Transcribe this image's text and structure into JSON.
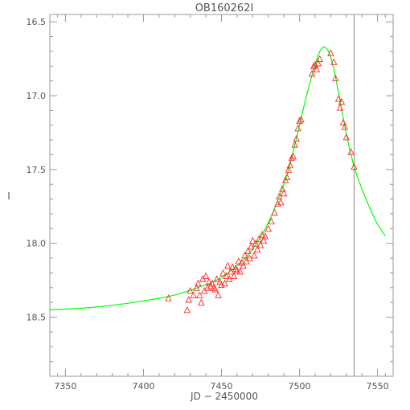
{
  "chart_data": {
    "type": "scatter",
    "title": "OB160262I",
    "xlabel": "JD − 2450000",
    "ylabel": "I",
    "xlim": [
      7340,
      7560
    ],
    "ylim": [
      18.9,
      16.45
    ],
    "y_inverted": true,
    "grid": false,
    "legend": "none",
    "x_ticks": [
      7350,
      7400,
      7450,
      7500,
      7550
    ],
    "x_tick_labels": [
      "7350",
      "7400",
      "7450",
      "7500",
      "7550"
    ],
    "y_ticks": [
      16.5,
      17.0,
      17.5,
      18.0,
      18.5
    ],
    "y_tick_labels": [
      "16.5",
      "17.0",
      "17.5",
      "18.0",
      "18.5"
    ],
    "vertical_marker": {
      "x": 7535,
      "color": "#888888"
    },
    "series": [
      {
        "kind": "model_curve",
        "color": "#00ff00",
        "x": [
          7340,
          7360,
          7380,
          7400,
          7420,
          7440,
          7450,
          7460,
          7470,
          7480,
          7490,
          7495,
          7500,
          7505,
          7510,
          7513,
          7516,
          7519,
          7522,
          7525,
          7530,
          7535,
          7540,
          7545,
          7550,
          7555
        ],
        "y": [
          18.45,
          18.44,
          18.42,
          18.39,
          18.35,
          18.28,
          18.23,
          18.15,
          18.04,
          17.86,
          17.6,
          17.42,
          17.2,
          16.98,
          16.79,
          16.7,
          16.67,
          16.71,
          16.82,
          16.98,
          17.26,
          17.48,
          17.63,
          17.76,
          17.87,
          17.95
        ]
      },
      {
        "kind": "observations",
        "marker": "triangle",
        "color": "#ff2a2a",
        "x": [
          7416,
          7428,
          7429,
          7430,
          7432,
          7434,
          7435,
          7436,
          7437,
          7438,
          7439,
          7440,
          7441,
          7442,
          7443,
          7444,
          7445,
          7446,
          7447,
          7448,
          7449,
          7450,
          7451,
          7452,
          7453,
          7454,
          7455,
          7456,
          7457,
          7458,
          7459,
          7460,
          7461,
          7462,
          7463,
          7464,
          7465,
          7466,
          7467,
          7468,
          7469,
          7470,
          7471,
          7472,
          7473,
          7474,
          7475,
          7476,
          7477,
          7478,
          7480,
          7482,
          7484,
          7486,
          7487,
          7488,
          7489,
          7490,
          7491,
          7492,
          7493,
          7494,
          7495,
          7496,
          7497,
          7498,
          7499,
          7500,
          7501,
          7508,
          7509,
          7510,
          7511,
          7512,
          7513,
          7520,
          7522,
          7523,
          7525,
          7526,
          7527,
          7528,
          7529,
          7530,
          7533,
          7535
        ],
        "y": [
          18.37,
          18.45,
          18.38,
          18.32,
          18.35,
          18.3,
          18.27,
          18.35,
          18.4,
          18.24,
          18.32,
          18.22,
          18.3,
          18.26,
          18.29,
          18.27,
          18.3,
          18.31,
          18.24,
          18.35,
          18.26,
          18.28,
          18.2,
          18.27,
          18.22,
          18.15,
          18.24,
          18.19,
          18.16,
          18.22,
          18.17,
          18.18,
          18.12,
          18.19,
          18.13,
          18.15,
          18.08,
          18.12,
          18.05,
          18.1,
          18.02,
          17.98,
          18.08,
          18.0,
          18.04,
          17.97,
          18.01,
          17.94,
          17.98,
          17.95,
          17.9,
          17.85,
          17.79,
          17.73,
          17.68,
          17.72,
          17.63,
          17.66,
          17.57,
          17.55,
          17.5,
          17.47,
          17.42,
          17.41,
          17.33,
          17.29,
          17.22,
          17.17,
          17.16,
          16.85,
          16.8,
          16.79,
          16.82,
          16.78,
          16.75,
          16.71,
          16.77,
          16.88,
          17.02,
          17.08,
          17.04,
          17.18,
          17.21,
          17.28,
          17.38,
          17.48
        ]
      }
    ]
  }
}
